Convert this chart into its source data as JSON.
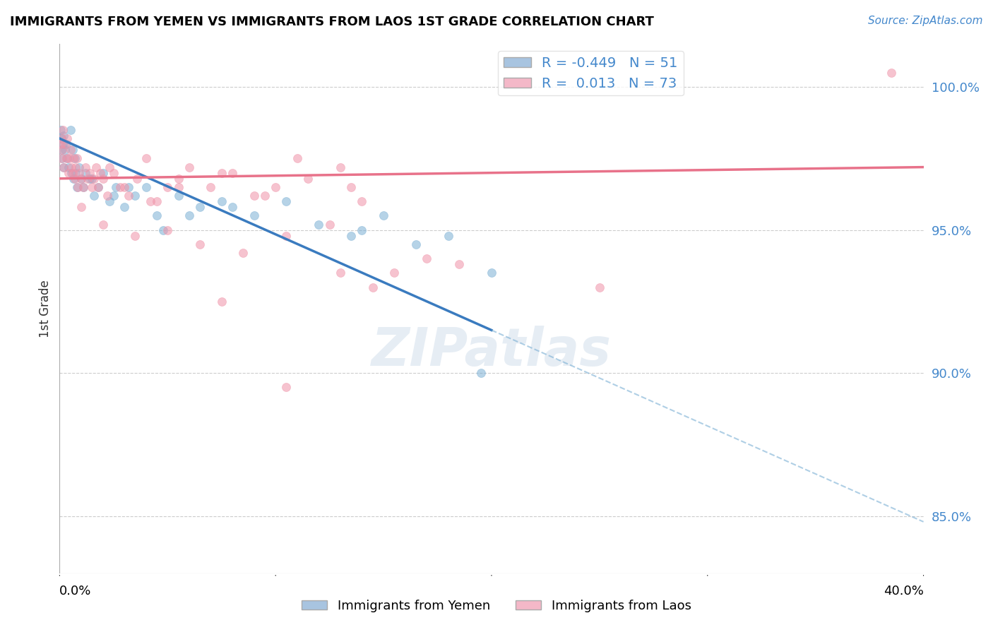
{
  "title": "IMMIGRANTS FROM YEMEN VS IMMIGRANTS FROM LAOS 1ST GRADE CORRELATION CHART",
  "source": "Source: ZipAtlas.com",
  "ylabel": "1st Grade",
  "x_min": 0.0,
  "x_max": 40.0,
  "y_min": 83.0,
  "y_max": 101.5,
  "y_ticks": [
    85.0,
    90.0,
    95.0,
    100.0
  ],
  "y_tick_labels": [
    "85.0%",
    "90.0%",
    "95.0%",
    "100.0%"
  ],
  "legend_blue_label": "R = -0.449   N = 51",
  "legend_pink_label": "R =  0.013   N = 73",
  "legend_blue_color": "#a8c4e0",
  "legend_pink_color": "#f4b8c8",
  "blue_dot_color": "#7aafd4",
  "pink_dot_color": "#f093a8",
  "blue_line_color": "#3a7bbf",
  "pink_line_color": "#e8728a",
  "watermark_color": "#c8d8e8",
  "dot_size": 75,
  "dot_alpha": 0.55,
  "blue_line_x0": 0.0,
  "blue_line_y0": 98.2,
  "blue_line_x1": 20.0,
  "blue_line_y1": 91.5,
  "blue_dash_x0": 20.0,
  "blue_dash_y0": 91.5,
  "blue_dash_x1": 40.0,
  "blue_dash_y1": 84.8,
  "pink_line_x0": 0.0,
  "pink_line_y0": 96.8,
  "pink_line_x1": 40.0,
  "pink_line_y1": 97.2,
  "blue_scatter_x": [
    0.05,
    0.08,
    0.1,
    0.12,
    0.15,
    0.18,
    0.2,
    0.25,
    0.3,
    0.35,
    0.4,
    0.5,
    0.55,
    0.6,
    0.65,
    0.7,
    0.75,
    0.8,
    0.9,
    1.0,
    1.1,
    1.2,
    1.4,
    1.6,
    1.8,
    2.0,
    2.3,
    2.6,
    3.0,
    3.5,
    4.0,
    4.5,
    5.5,
    6.5,
    7.5,
    9.0,
    10.5,
    12.0,
    13.5,
    15.0,
    16.5,
    18.0,
    20.0,
    1.5,
    2.5,
    3.2,
    4.8,
    6.0,
    8.0,
    14.0,
    19.5
  ],
  "blue_scatter_y": [
    98.5,
    97.8,
    98.2,
    97.5,
    98.0,
    97.2,
    98.3,
    97.8,
    98.0,
    97.5,
    97.2,
    98.5,
    97.0,
    97.8,
    96.8,
    97.5,
    97.0,
    96.5,
    97.2,
    96.8,
    96.5,
    97.0,
    96.8,
    96.2,
    96.5,
    97.0,
    96.0,
    96.5,
    95.8,
    96.2,
    96.5,
    95.5,
    96.2,
    95.8,
    96.0,
    95.5,
    96.0,
    95.2,
    94.8,
    95.5,
    94.5,
    94.8,
    93.5,
    96.8,
    96.2,
    96.5,
    95.0,
    95.5,
    95.8,
    95.0,
    90.0
  ],
  "pink_scatter_x": [
    0.05,
    0.08,
    0.1,
    0.12,
    0.15,
    0.2,
    0.25,
    0.3,
    0.35,
    0.4,
    0.45,
    0.5,
    0.55,
    0.6,
    0.65,
    0.7,
    0.75,
    0.8,
    0.85,
    0.9,
    1.0,
    1.1,
    1.2,
    1.3,
    1.4,
    1.5,
    1.6,
    1.7,
    1.8,
    1.9,
    2.0,
    2.2,
    2.5,
    2.8,
    3.2,
    3.6,
    4.0,
    4.5,
    5.0,
    5.5,
    6.0,
    7.0,
    8.0,
    9.0,
    10.0,
    11.5,
    13.0,
    14.0,
    2.3,
    3.0,
    4.2,
    5.5,
    7.5,
    9.5,
    11.0,
    13.5,
    1.0,
    2.0,
    3.5,
    5.0,
    6.5,
    8.5,
    10.5,
    12.5,
    13.0,
    14.5,
    15.5,
    17.0,
    18.5,
    7.5,
    25.0,
    10.5,
    38.5
  ],
  "pink_scatter_y": [
    98.0,
    97.5,
    98.2,
    97.8,
    98.5,
    97.2,
    98.0,
    97.5,
    98.2,
    97.0,
    97.5,
    97.8,
    97.2,
    97.0,
    97.5,
    96.8,
    97.2,
    97.5,
    96.5,
    97.0,
    96.8,
    96.5,
    97.2,
    96.8,
    97.0,
    96.5,
    96.8,
    97.2,
    96.5,
    97.0,
    96.8,
    96.2,
    97.0,
    96.5,
    96.2,
    96.8,
    97.5,
    96.0,
    96.5,
    96.8,
    97.2,
    96.5,
    97.0,
    96.2,
    96.5,
    96.8,
    97.2,
    96.0,
    97.2,
    96.5,
    96.0,
    96.5,
    97.0,
    96.2,
    97.5,
    96.5,
    95.8,
    95.2,
    94.8,
    95.0,
    94.5,
    94.2,
    94.8,
    95.2,
    93.5,
    93.0,
    93.5,
    94.0,
    93.8,
    92.5,
    93.0,
    89.5,
    100.5
  ]
}
